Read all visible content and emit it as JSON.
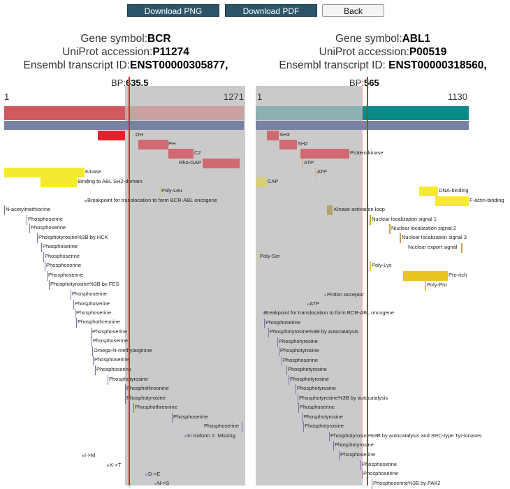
{
  "toolbar": {
    "download_png": "Download PNG",
    "download_pdf": "Download PDF",
    "back": "Back"
  },
  "left_gene": {
    "symbol_label": "Gene symbol:",
    "symbol": "BCR",
    "uniprot_label": "UniProt accession:",
    "uniprot": "P11274",
    "ensembl_label": "Ensembl transcript ID:",
    "ensembl": "ENST00000305877,",
    "bp_label": "BP:",
    "bp": "635.5",
    "axis_start": "1",
    "axis_end": "1271"
  },
  "right_gene": {
    "symbol_label": "Gene symbol:",
    "symbol": "ABL1",
    "uniprot_label": "UniProt accession:",
    "uniprot": "P00519",
    "ensembl_label": "Ensembl transcript ID: ",
    "ensembl": "ENST00000318560,",
    "bp_label": "BP:",
    "bp": "565",
    "axis_start": "1",
    "axis_end": "1130"
  },
  "colors": {
    "bcr_bar": "#d05a60",
    "abl_bar": "#0a8a88",
    "domain_bar": "#7882a4",
    "breakpoint_line": "#e8202b",
    "retained_zone": "#cacaca",
    "domain_feature": "#cf6b70",
    "region_feature": "#f5ea30",
    "motif_feature": "#d6cf77",
    "binding_feature": "#e2b08a",
    "site_feature": "#b3a36e",
    "tick_feature": "#7a6fb0"
  },
  "left_features": [
    "DH",
    "PH",
    "C2",
    "Rho-GAP",
    "Kinase",
    "Binding to ABL SH2-domain",
    "Poly-Leu",
    "Breakpoint for translocation to form BCR-ABL oncogene",
    "N-acetylmethionine",
    "Phosphoserine",
    "Phosphoserine",
    "Phosphotyrosine%3B by HCK",
    "Phosphoserine",
    "Phosphoserine",
    "Phosphoserine",
    "Phosphoserine",
    "Phosphotyrosine%3B by FES",
    "Phosphoserine",
    "Phosphoserine",
    "Phosphoserine",
    "Phosphothreonine",
    "Phosphoserine",
    "Phosphoserine",
    "Omega-N-methylarginine",
    "Phosphoserine",
    "Phosphoserine",
    "Phosphotyrosine",
    "Phosphothreonine",
    "Phosphotyrosine",
    "Phosphothreonine",
    "Phosphoserine",
    "Phosphoserine",
    "In isoform 2. Missing",
    "I->M",
    "K->T",
    "D->E",
    "N->S"
  ],
  "right_features": [
    "SH3",
    "SH2",
    "Protein kinase",
    "ATP",
    "ATP",
    "CAP",
    "DNA-binding",
    "F-actin-binding",
    "Kinase activation loop",
    "Nuclear localization signal 1",
    "Nuclear localization signal 2",
    "Nuclear localization signal 3",
    "Nuclear export signal",
    "Poly-Ser",
    "Poly-Lys",
    "Pro-rich",
    "Poly-Pro",
    "Proton acceptor",
    "ATP",
    "Breakpoint for translocation to form BCR-ABL oncogene",
    "Phosphoserine",
    "Phosphotyrosine%3B by autocatalysis",
    "Phosphotyrosine",
    "Phosphotyrosine",
    "Phosphoserine",
    "Phosphotyrosine",
    "Phosphotyrosine",
    "Phosphotyrosine",
    "Phosphotyrosine%3B by autocatalysis",
    "Phosphoserine",
    "Phosphotyrosine",
    "Phosphotyrosine",
    "Phosphotyrosine%3B by autocatalysis and SRC-type Tyr-kinases",
    "Phosphotyrosine",
    "Phosphoserine",
    "Phosphoserine",
    "Phosphoserine",
    "Phosphoserine%3B by PAK2"
  ]
}
